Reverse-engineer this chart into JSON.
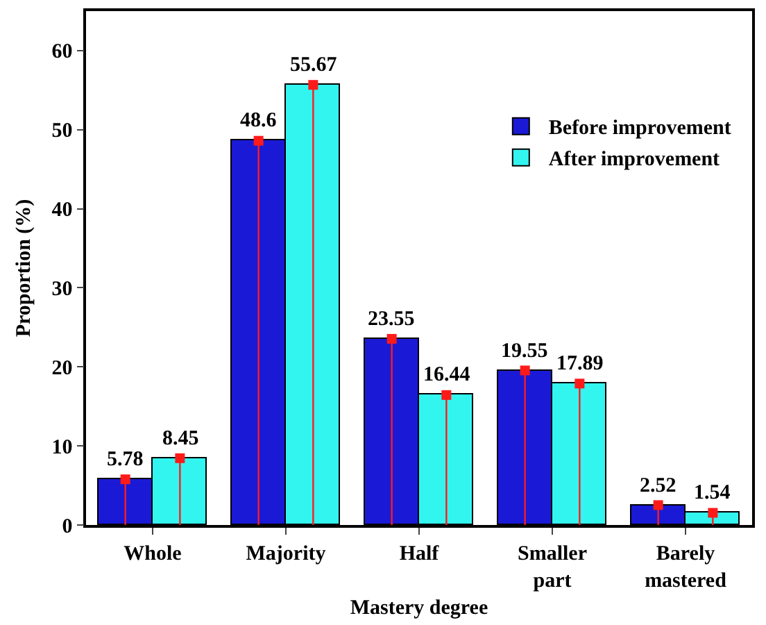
{
  "chart_data": {
    "type": "bar",
    "xlabel": "Mastery degree",
    "ylabel": "Proportion (%)",
    "categories": [
      "Whole",
      "Majority",
      "Half",
      "Smaller part",
      "Barely mastered"
    ],
    "series": [
      {
        "name": "Before improvement",
        "color": "#1a1ad6",
        "values": [
          5.78,
          48.6,
          23.55,
          19.55,
          2.52
        ]
      },
      {
        "name": "After improvement",
        "color": "#33f5f0",
        "values": [
          8.45,
          55.67,
          16.44,
          17.89,
          1.54
        ]
      },
      {
        "type": "lollipop",
        "color": "#ff1a1a",
        "values": [
          5.78,
          48.6,
          23.55,
          19.55,
          2.52
        ],
        "value_labels": [
          "5.78",
          "48.6",
          "23.55",
          "19.55",
          "2.52"
        ]
      },
      {
        "type": "lollipop",
        "color": "#ff1a1a",
        "values": [
          8.45,
          55.67,
          16.44,
          17.89,
          1.54
        ],
        "value_labels": [
          "8.45",
          "55.67",
          "16.44",
          "17.89",
          "1.54"
        ]
      }
    ],
    "ylim": [
      0,
      65
    ],
    "yticks": [
      0,
      10,
      20,
      30,
      40,
      50,
      60
    ],
    "grid": false,
    "legend": "top right",
    "marker": "square"
  }
}
